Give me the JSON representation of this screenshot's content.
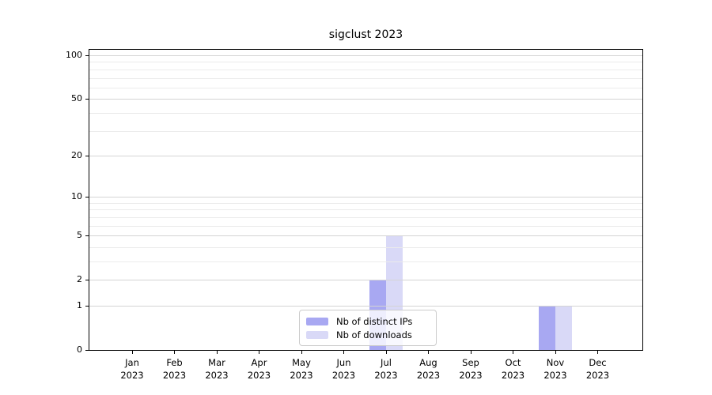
{
  "chart_data": {
    "type": "bar",
    "title": "sigclust 2023",
    "categories": [
      "Jan 2023",
      "Feb 2023",
      "Mar 2023",
      "Apr 2023",
      "May 2023",
      "Jun 2023",
      "Jul 2023",
      "Aug 2023",
      "Sep 2023",
      "Oct 2023",
      "Nov 2023",
      "Dec 2023"
    ],
    "series": [
      {
        "name": "Nb of distinct IPs",
        "color": "#a8a8f2",
        "values": [
          0,
          0,
          0,
          0,
          0,
          0,
          2,
          0,
          0,
          0,
          1,
          0
        ]
      },
      {
        "name": "Nb of downloads",
        "color": "#d9d9f7",
        "values": [
          0,
          0,
          0,
          0,
          0,
          0,
          5,
          0,
          0,
          0,
          1,
          0
        ]
      }
    ],
    "xlabel": "",
    "ylabel": "",
    "yscale": "log1p",
    "ylim": [
      0,
      110
    ],
    "yticks": [
      0,
      1,
      2,
      5,
      10,
      20,
      50,
      100
    ],
    "yticks_minor": [
      3,
      4,
      6,
      7,
      8,
      9,
      30,
      40,
      60,
      70,
      80,
      90
    ],
    "grid": "horizontal",
    "legend_position": "bottom-center"
  }
}
